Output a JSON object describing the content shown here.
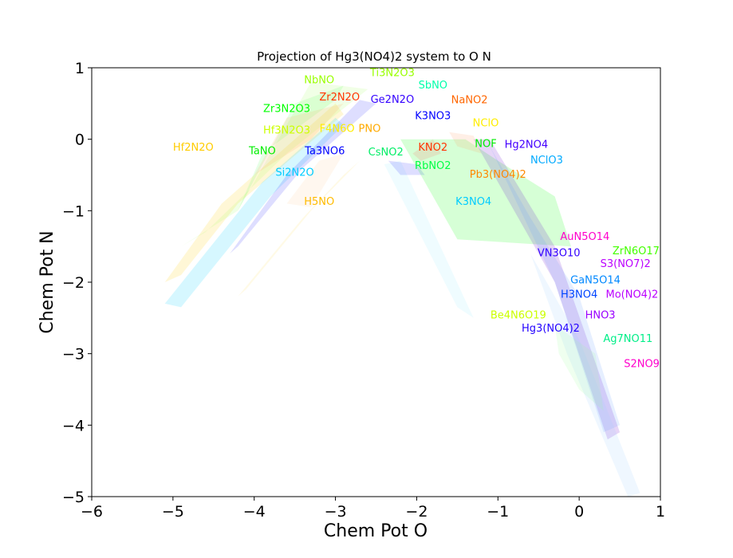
{
  "chart_data": {
    "type": "area",
    "title": "Projection of Hg3(NO4)2 system to O N",
    "xlabel": "Chem Pot O",
    "ylabel": "Chem Pot N",
    "xlim": [
      -6,
      1
    ],
    "ylim": [
      -5,
      1
    ],
    "xticks": [
      -6,
      -5,
      -4,
      -3,
      -2,
      -1,
      0,
      1
    ],
    "yticks": [
      1,
      0,
      -1,
      -2,
      -3,
      -4,
      -5
    ],
    "xtick_labels": [
      "−6",
      "−5",
      "−4",
      "−3",
      "−2",
      "−1",
      "0",
      "1"
    ],
    "ytick_labels": [
      "1",
      "0",
      "−1",
      "−2",
      "−3",
      "−4",
      "−5"
    ],
    "grid": false,
    "regions": [
      {
        "color": "#ffcc00",
        "points": [
          [
            -5.1,
            -2.0
          ],
          [
            -4.4,
            -0.9
          ],
          [
            -3.0,
            0.5
          ],
          [
            -2.9,
            0.35
          ],
          [
            -4.2,
            -0.9
          ],
          [
            -4.9,
            -1.9
          ]
        ]
      },
      {
        "color": "#aaff66",
        "points": [
          [
            -4.9,
            -1.5
          ],
          [
            -4.2,
            -1.0
          ],
          [
            -3.3,
            0.8
          ],
          [
            -2.6,
            0.7
          ],
          [
            -3.6,
            -0.2
          ],
          [
            -4.6,
            -1.3
          ]
        ]
      },
      {
        "color": "#66ff66",
        "points": [
          [
            -4.2,
            -1.0
          ],
          [
            -3.5,
            0.5
          ],
          [
            -2.9,
            0.75
          ],
          [
            -3.0,
            0.55
          ],
          [
            -3.9,
            -0.2
          ]
        ]
      },
      {
        "color": "#ffaa66",
        "points": [
          [
            -4.0,
            -0.5
          ],
          [
            -3.6,
            0.3
          ],
          [
            -2.9,
            0.5
          ],
          [
            -3.3,
            0.0
          ]
        ]
      },
      {
        "color": "#00ccff",
        "points": [
          [
            -5.1,
            -2.3
          ],
          [
            -3.9,
            -0.6
          ],
          [
            -3.0,
            0.3
          ],
          [
            -2.9,
            0.2
          ],
          [
            -3.8,
            -0.8
          ],
          [
            -4.9,
            -2.35
          ]
        ]
      },
      {
        "color": "#3333ff",
        "points": [
          [
            -4.3,
            -1.6
          ],
          [
            -3.6,
            -0.5
          ],
          [
            -2.7,
            0.55
          ],
          [
            -2.5,
            0.5
          ],
          [
            -3.4,
            -0.4
          ],
          [
            -4.2,
            -1.5
          ]
        ]
      },
      {
        "color": "#ffdd66",
        "points": [
          [
            -4.2,
            -2.2
          ],
          [
            -3.4,
            -1.1
          ],
          [
            -2.9,
            -0.5
          ],
          [
            -2.7,
            -0.3
          ],
          [
            -3.3,
            -1.0
          ],
          [
            -4.1,
            -2.1
          ]
        ]
      },
      {
        "color": "#ffcc99",
        "points": [
          [
            -3.6,
            -0.9
          ],
          [
            -3.2,
            -0.3
          ],
          [
            -2.9,
            -0.2
          ],
          [
            -3.3,
            -0.95
          ]
        ]
      },
      {
        "color": "#99eeff",
        "points": [
          [
            -2.4,
            -0.35
          ],
          [
            -2.2,
            -0.3
          ],
          [
            -1.3,
            -2.5
          ],
          [
            -1.5,
            -2.35
          ]
        ]
      },
      {
        "color": "#3333ff",
        "points": [
          [
            -2.35,
            -0.3
          ],
          [
            -2.0,
            -0.35
          ],
          [
            -1.9,
            -0.5
          ],
          [
            -2.2,
            -0.5
          ]
        ]
      },
      {
        "color": "#00ff00",
        "points": [
          [
            -2.2,
            0.0
          ],
          [
            -1.4,
            0.0
          ],
          [
            -1.0,
            -0.3
          ],
          [
            -0.3,
            -0.8
          ],
          [
            -0.1,
            -1.5
          ],
          [
            -1.5,
            -1.4
          ]
        ]
      },
      {
        "color": "#ff6666",
        "points": [
          [
            -2.05,
            -0.2
          ],
          [
            -1.8,
            0.0
          ],
          [
            -1.7,
            -0.2
          ],
          [
            -1.95,
            -0.3
          ]
        ]
      },
      {
        "color": "#ff9966",
        "points": [
          [
            -1.6,
            0.1
          ],
          [
            -1.3,
            0.05
          ],
          [
            -1.2,
            -0.2
          ],
          [
            -1.5,
            -0.1
          ]
        ]
      },
      {
        "color": "#6600cc",
        "points": [
          [
            -1.3,
            0.0
          ],
          [
            -1.1,
            0.0
          ],
          [
            -0.3,
            -1.5
          ],
          [
            0.5,
            -4.1
          ],
          [
            0.35,
            -4.2
          ],
          [
            -0.3,
            -2.0
          ]
        ]
      },
      {
        "color": "#6699ff",
        "points": [
          [
            -1.1,
            -0.1
          ],
          [
            -0.6,
            -1.1
          ],
          [
            0.0,
            -2.2
          ],
          [
            0.5,
            -4.0
          ],
          [
            0.3,
            -4.1
          ],
          [
            -0.3,
            -2.0
          ]
        ]
      },
      {
        "color": "#99ccff",
        "points": [
          [
            -0.6,
            -1.6
          ],
          [
            0.0,
            -2.8
          ],
          [
            0.75,
            -4.95
          ],
          [
            0.6,
            -5.0
          ],
          [
            -0.15,
            -3.0
          ]
        ]
      },
      {
        "color": "#99ff99",
        "points": [
          [
            -0.3,
            -2.6
          ],
          [
            0.2,
            -3.0
          ],
          [
            0.3,
            -3.8
          ],
          [
            0.0,
            -3.5
          ],
          [
            -0.25,
            -3.0
          ]
        ]
      }
    ],
    "labels": [
      {
        "text": "NbNO",
        "x": -3.2,
        "y": 0.82,
        "color": "#99ff00"
      },
      {
        "text": "Ti3N2O3",
        "x": -2.3,
        "y": 0.92,
        "color": "#99ff00"
      },
      {
        "text": "SbNO",
        "x": -1.8,
        "y": 0.75,
        "color": "#00ffaa"
      },
      {
        "text": "Zr2N2O",
        "x": -2.95,
        "y": 0.58,
        "color": "#ff3300"
      },
      {
        "text": "Ge2N2O",
        "x": -2.3,
        "y": 0.55,
        "color": "#3300ff"
      },
      {
        "text": "NaNO2",
        "x": -1.35,
        "y": 0.54,
        "color": "#ff6600"
      },
      {
        "text": "Zr3N2O3",
        "x": -3.6,
        "y": 0.42,
        "color": "#00ff00"
      },
      {
        "text": "K3NO3",
        "x": -1.8,
        "y": 0.32,
        "color": "#0000ff"
      },
      {
        "text": "NClO",
        "x": -1.15,
        "y": 0.22,
        "color": "#ffee00"
      },
      {
        "text": "Hf3N2O3",
        "x": -3.6,
        "y": 0.12,
        "color": "#ccff00"
      },
      {
        "text": "F4N6O",
        "x": -2.98,
        "y": 0.14,
        "color": "#ffee00"
      },
      {
        "text": "PNO",
        "x": -2.58,
        "y": 0.14,
        "color": "#ffaa00"
      },
      {
        "text": "Hf2N2O",
        "x": -4.75,
        "y": -0.12,
        "color": "#ffcc00"
      },
      {
        "text": "TaNO",
        "x": -3.9,
        "y": -0.17,
        "color": "#00ee00"
      },
      {
        "text": "Ta3NO6",
        "x": -3.13,
        "y": -0.17,
        "color": "#0000ff"
      },
      {
        "text": "CsNO2",
        "x": -2.38,
        "y": -0.19,
        "color": "#00ee66"
      },
      {
        "text": "KNO2",
        "x": -1.8,
        "y": -0.12,
        "color": "#ff3300"
      },
      {
        "text": "NOF",
        "x": -1.15,
        "y": -0.07,
        "color": "#00ee00"
      },
      {
        "text": "Hg2NO4",
        "x": -0.65,
        "y": -0.08,
        "color": "#4400ff"
      },
      {
        "text": "NClO3",
        "x": -0.4,
        "y": -0.3,
        "color": "#00aaff"
      },
      {
        "text": "RbNO2",
        "x": -1.8,
        "y": -0.38,
        "color": "#00ff44"
      },
      {
        "text": "Pb3(NO4)2",
        "x": -1.0,
        "y": -0.5,
        "color": "#ff8800"
      },
      {
        "text": "Si2N2O",
        "x": -3.5,
        "y": -0.47,
        "color": "#00ccff"
      },
      {
        "text": "H5NO",
        "x": -3.2,
        "y": -0.88,
        "color": "#ffbb00"
      },
      {
        "text": "K3NO4",
        "x": -1.3,
        "y": -0.88,
        "color": "#00ccff"
      },
      {
        "text": "AuN5O14",
        "x": 0.07,
        "y": -1.37,
        "color": "#ff00cc"
      },
      {
        "text": "ZrN6O17",
        "x": 0.7,
        "y": -1.57,
        "color": "#44ff00"
      },
      {
        "text": "VN3O10",
        "x": -0.25,
        "y": -1.6,
        "color": "#3300ff"
      },
      {
        "text": "S3(NO7)2",
        "x": 0.57,
        "y": -1.75,
        "color": "#bb00ff"
      },
      {
        "text": "GaN5O14",
        "x": 0.2,
        "y": -1.98,
        "color": "#0088ff"
      },
      {
        "text": "H3NO4",
        "x": 0.0,
        "y": -2.18,
        "color": "#0044ff"
      },
      {
        "text": "Mo(NO4)2",
        "x": 0.65,
        "y": -2.18,
        "color": "#bb00ff"
      },
      {
        "text": "Be4N6O19",
        "x": -0.75,
        "y": -2.47,
        "color": "#ccff00"
      },
      {
        "text": "HNO3",
        "x": 0.26,
        "y": -2.47,
        "color": "#9900ff"
      },
      {
        "text": "Hg3(NO4)2",
        "x": -0.35,
        "y": -2.65,
        "color": "#2200ff"
      },
      {
        "text": "Ag7NO11",
        "x": 0.6,
        "y": -2.8,
        "color": "#00ee88"
      },
      {
        "text": "S2NO9",
        "x": 0.77,
        "y": -3.15,
        "color": "#ff00cc"
      }
    ]
  }
}
